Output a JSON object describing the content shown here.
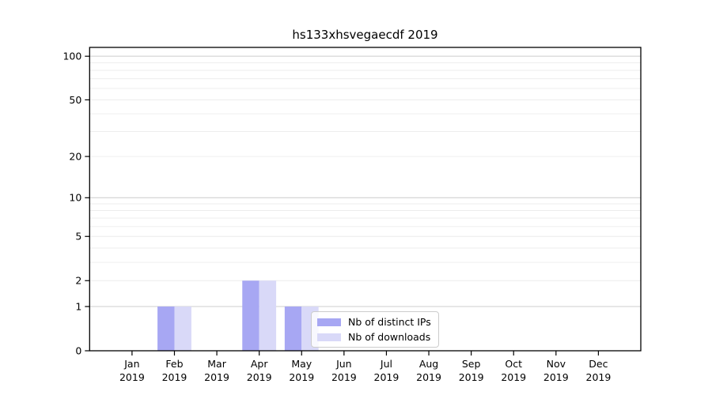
{
  "chart_data": {
    "type": "bar",
    "title": "hs133xhsvegaecdf 2019",
    "categories": [
      "Jan 2019",
      "Feb 2019",
      "Mar 2019",
      "Apr 2019",
      "May 2019",
      "Jun 2019",
      "Jul 2019",
      "Aug 2019",
      "Sep 2019",
      "Oct 2019",
      "Nov 2019",
      "Dec 2019"
    ],
    "series": [
      {
        "name": "Nb of distinct IPs",
        "color": "#a7a7f3",
        "values": [
          0,
          1,
          0,
          2,
          1,
          0,
          0,
          0,
          0,
          0,
          0,
          0
        ]
      },
      {
        "name": "Nb of downloads",
        "color": "#d9d9f8",
        "values": [
          0,
          1,
          0,
          2,
          1,
          0,
          0,
          0,
          0,
          0,
          0,
          0
        ]
      }
    ],
    "xlabel": "",
    "ylabel": "",
    "yscale": "log1p",
    "ylim": [
      0,
      115
    ],
    "yticks": [
      0,
      1,
      2,
      5,
      10,
      20,
      50,
      100
    ],
    "major_gridlines": [
      1,
      10,
      100
    ],
    "minor_gridlines": [
      2,
      3,
      4,
      5,
      6,
      7,
      8,
      9,
      20,
      30,
      40,
      50,
      60,
      70,
      80,
      90
    ],
    "grid": true,
    "legend_position": "lower center",
    "colors": {
      "axis": "#000000",
      "major_grid": "#cccccc",
      "minor_grid": "#ececec",
      "tick_label": "#000000"
    }
  }
}
